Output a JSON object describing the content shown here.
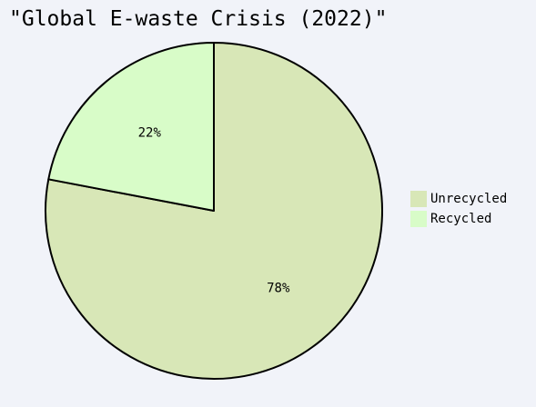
{
  "chart_data": {
    "type": "pie",
    "title": "\"Global E-waste Crisis (2022)\"",
    "slices": [
      {
        "label": "Unrecycled",
        "value": 78,
        "display": "78%",
        "color": "#d8e7b7"
      },
      {
        "label": "Recycled",
        "value": 22,
        "display": "22%",
        "color": "#d8fcc8"
      }
    ],
    "legend_position": "right",
    "start_angle_deg": 90,
    "direction": "clockwise",
    "edge_color": "#000000"
  }
}
